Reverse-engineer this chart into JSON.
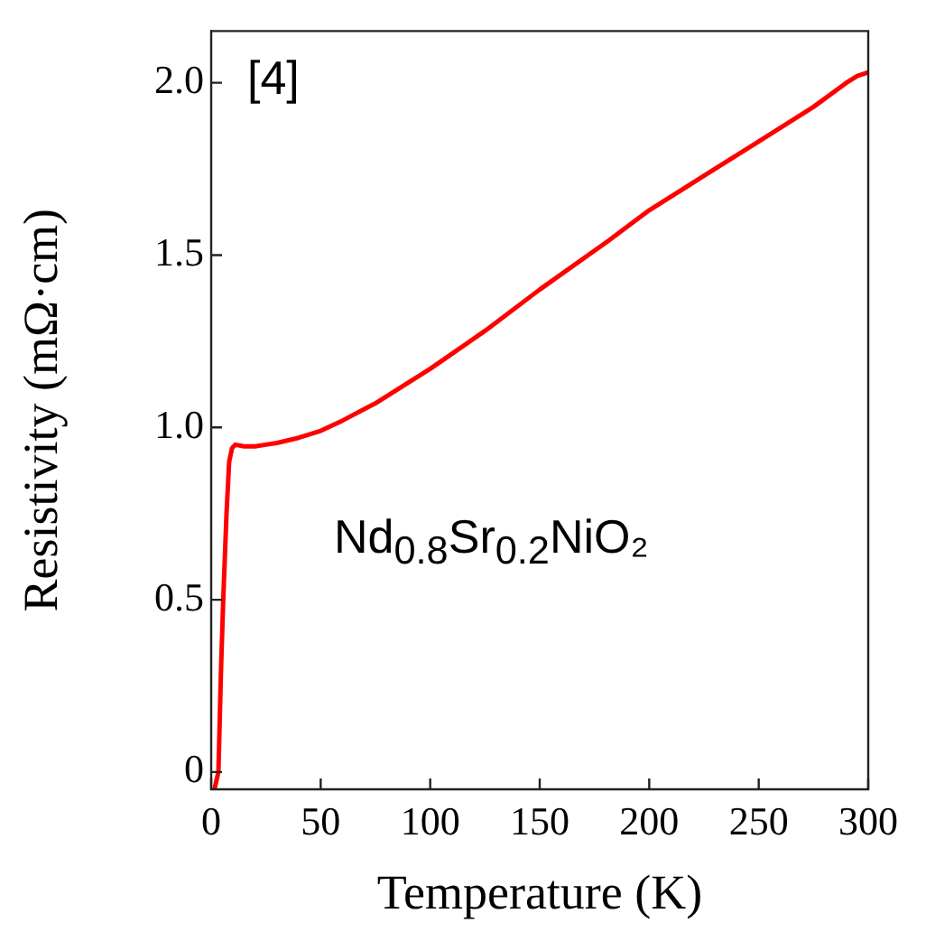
{
  "chart_data": {
    "type": "line",
    "xlabel": "Temperature (K)",
    "ylabel": "Resistivity (mΩ·cm)",
    "annotations": [
      "[4]",
      "Nd$_{0.8}$Sr$_{0.2}$NiO₂"
    ],
    "x": [
      1.5,
      3.3,
      4.5,
      5.5,
      7,
      8.2,
      9.5,
      11,
      15,
      20,
      25,
      30,
      40,
      50,
      60,
      75,
      100,
      125,
      150,
      181,
      200,
      225,
      250,
      275,
      290,
      295,
      300
    ],
    "series": [
      {
        "color": "#ff0000",
        "values": [
          -0.05,
          0,
          0.3,
          0.5,
          0.75,
          0.9,
          0.94,
          0.95,
          0.945,
          0.945,
          0.95,
          0.955,
          0.97,
          0.99,
          1.02,
          1.07,
          1.17,
          1.28,
          1.4,
          1.54,
          1.63,
          1.73,
          1.83,
          1.93,
          2.0,
          2.02,
          2.03
        ]
      }
    ],
    "xlim": [
      0,
      300
    ],
    "xticks": [
      0,
      50,
      100,
      150,
      200,
      250,
      300
    ],
    "ylim": [
      -0.05,
      2.15
    ],
    "yticks": [
      0,
      0.5,
      {
        "value": 1,
        "label": "1.0"
      },
      1.5,
      {
        "value": 2,
        "label": "2.0"
      }
    ],
    "grid": false,
    "legend": false,
    "marker": "none",
    "line_style": "solid"
  }
}
